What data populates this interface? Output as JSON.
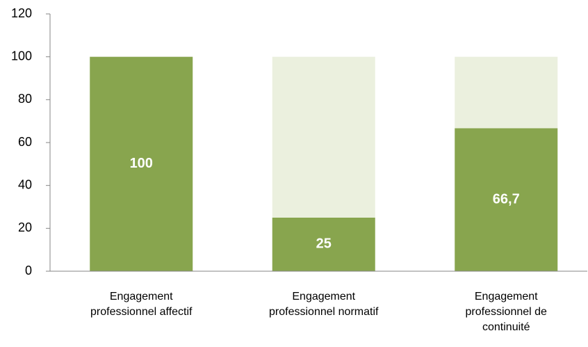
{
  "chart_data": {
    "type": "stacked_bar",
    "categories": [
      "Engagement professionnel affectif",
      "Engagement professionnel normatif",
      "Engagement professionnel de continuité"
    ],
    "series": [
      {
        "color": "#88a54e",
        "values": [
          100,
          25,
          66.7
        ],
        "value_labels": [
          "100",
          "25",
          "66,7"
        ]
      },
      {
        "color": "#ebf0de",
        "values": [
          0,
          75,
          33.3
        ]
      }
    ],
    "ylim": [
      0,
      120
    ],
    "yticks": [
      0,
      20,
      40,
      60,
      80,
      100,
      120
    ],
    "grid": false
  }
}
